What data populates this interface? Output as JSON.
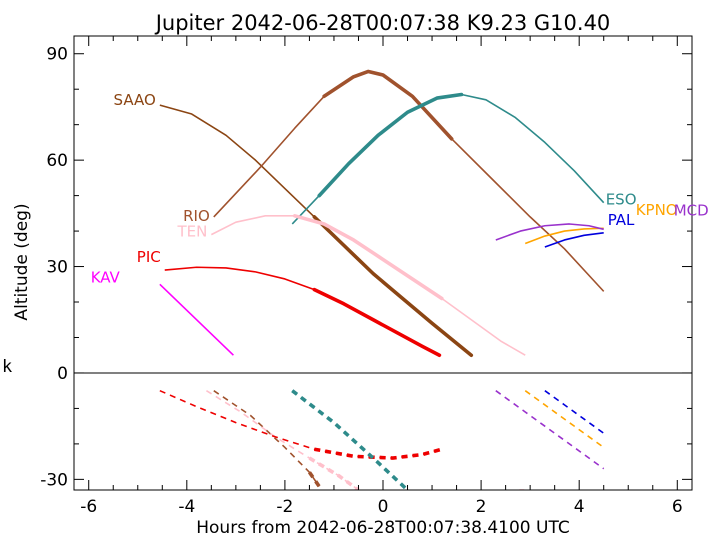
{
  "chart_data": {
    "type": "line",
    "title": "Jupiter 2042-06-28T00:07:38  K9.23  G10.40",
    "xlabel": "Hours from 2042-06-28T00:07:38.4100 UTC",
    "ylabel": "Altitude (deg)",
    "side_label": "k",
    "xlim": [
      -6.3,
      6.3
    ],
    "ylim": [
      -33,
      95
    ],
    "xticks": [
      "-6",
      "-4",
      "-2",
      "0",
      "2",
      "4",
      "6"
    ],
    "yticks": [
      "-30",
      "0",
      "30",
      "60",
      "90"
    ],
    "grid": false,
    "series": [
      {
        "name": "SAAO",
        "color": "#8b4513",
        "x": [
          -4.55,
          -3.9,
          -3.2,
          -2.6,
          -2.0,
          -1.4,
          -0.8,
          -0.2,
          0.4,
          1.0,
          1.8
        ],
        "y": [
          75.5,
          73,
          67,
          60,
          52,
          44,
          36,
          28,
          21,
          14,
          5
        ],
        "thick_from": -1.8
      },
      {
        "name": "RIO",
        "color": "#a0522d",
        "x": [
          -3.45,
          -2.5,
          -1.8,
          -1.2,
          -0.6,
          -0.3,
          0.0,
          0.6,
          1.4,
          2.2,
          3.0,
          3.7,
          4.5
        ],
        "y": [
          44,
          58,
          69,
          78,
          83.5,
          85,
          84,
          78,
          66,
          55,
          44,
          35,
          23
        ],
        "thick_from": -1.7,
        "thick_to": 1.7
      },
      {
        "name": "ESO",
        "color": "#2e8b8b",
        "x": [
          -1.85,
          -1.3,
          -0.7,
          -0.1,
          0.5,
          1.1,
          1.6,
          2.1,
          2.7,
          3.3,
          3.9,
          4.5
        ],
        "y": [
          42,
          50,
          59,
          67,
          73.5,
          77.5,
          78.5,
          77,
          72,
          65,
          57,
          48
        ],
        "thick_from": -1.3,
        "thick_to": 1.7
      },
      {
        "name": "TEN",
        "color": "#ffc0cb",
        "x": [
          -3.5,
          -3.0,
          -2.4,
          -1.8,
          -1.2,
          -0.6,
          0.0,
          0.6,
          1.2,
          1.8,
          2.4,
          2.9
        ],
        "y": [
          39,
          42.5,
          44.3,
          44.3,
          42,
          37.5,
          32,
          26.5,
          21,
          15,
          9,
          5
        ],
        "thick_from": -1.8,
        "thick_to": 1.7
      },
      {
        "name": "PIC",
        "color": "#ee0000",
        "x": [
          -4.45,
          -3.8,
          -3.2,
          -2.6,
          -2.0,
          -1.4,
          -0.8,
          -0.2,
          0.4,
          0.8,
          1.15
        ],
        "y": [
          29,
          29.8,
          29.6,
          28.5,
          26.5,
          23.5,
          19.5,
          15,
          10.5,
          7.5,
          5
        ],
        "thick_from": -1.8
      },
      {
        "name": "KAV",
        "color": "#ff00ff",
        "x": [
          -4.55,
          -3.05
        ],
        "y": [
          25,
          5
        ]
      },
      {
        "name": "PAL",
        "color": "#0000dd",
        "x": [
          3.3,
          3.7,
          4.1,
          4.5
        ],
        "y": [
          35.5,
          37.5,
          38.8,
          39.5
        ]
      },
      {
        "name": "KPNO",
        "color": "#ffa500",
        "x": [
          2.9,
          3.3,
          3.7,
          4.1,
          4.5
        ],
        "y": [
          36.5,
          38.6,
          40,
          40.6,
          40.8
        ]
      },
      {
        "name": "MCD",
        "color": "#9932cc",
        "x": [
          2.3,
          2.8,
          3.3,
          3.8,
          4.2,
          4.5
        ],
        "y": [
          37.5,
          40,
          41.5,
          42,
          41.5,
          40.5
        ]
      }
    ],
    "lower_panel_series": [
      {
        "color": "#a0522d",
        "x": [
          -3.45,
          -2.7,
          -2.0,
          -1.5,
          -1.3
        ],
        "y": [
          -5,
          -12,
          -21,
          -28,
          -32
        ],
        "thick_from": -1.7
      },
      {
        "color": "#ffc0cb",
        "x": [
          -3.6,
          -2.9,
          -2.2,
          -1.5,
          -0.9,
          -0.5
        ],
        "y": [
          -5,
          -11,
          -18,
          -24,
          -29,
          -33
        ],
        "thick_from": -2.0
      },
      {
        "color": "#ee0000",
        "x": [
          -4.55,
          -3.8,
          -3.0,
          -2.2,
          -1.4,
          -0.6,
          0.2,
          0.8,
          1.2
        ],
        "y": [
          -5,
          -9.5,
          -14,
          -18,
          -21.5,
          -23.5,
          -24,
          -23,
          -21.5
        ],
        "thick_from": -1.9
      },
      {
        "color": "#2e8b8b",
        "x": [
          -1.85,
          -1.0,
          -0.2,
          0.5
        ],
        "y": [
          -5,
          -14,
          -24,
          -33
        ],
        "thick_from": -1.85
      },
      {
        "color": "#9932cc",
        "x": [
          2.3,
          2.9,
          3.5,
          4.1,
          4.5
        ],
        "y": [
          -5,
          -11,
          -17,
          -23,
          -27
        ]
      },
      {
        "color": "#ffa500",
        "x": [
          2.9,
          3.4,
          3.9,
          4.5
        ],
        "y": [
          -5,
          -10,
          -15,
          -21
        ]
      },
      {
        "color": "#0000dd",
        "x": [
          3.3,
          3.7,
          4.1,
          4.5
        ],
        "y": [
          -5,
          -9,
          -13,
          -17
        ]
      },
      {
        "color": "#ffc0cb",
        "x": [
          2.78,
          2.88
        ],
        "y": [
          -33,
          -33
        ]
      }
    ]
  }
}
